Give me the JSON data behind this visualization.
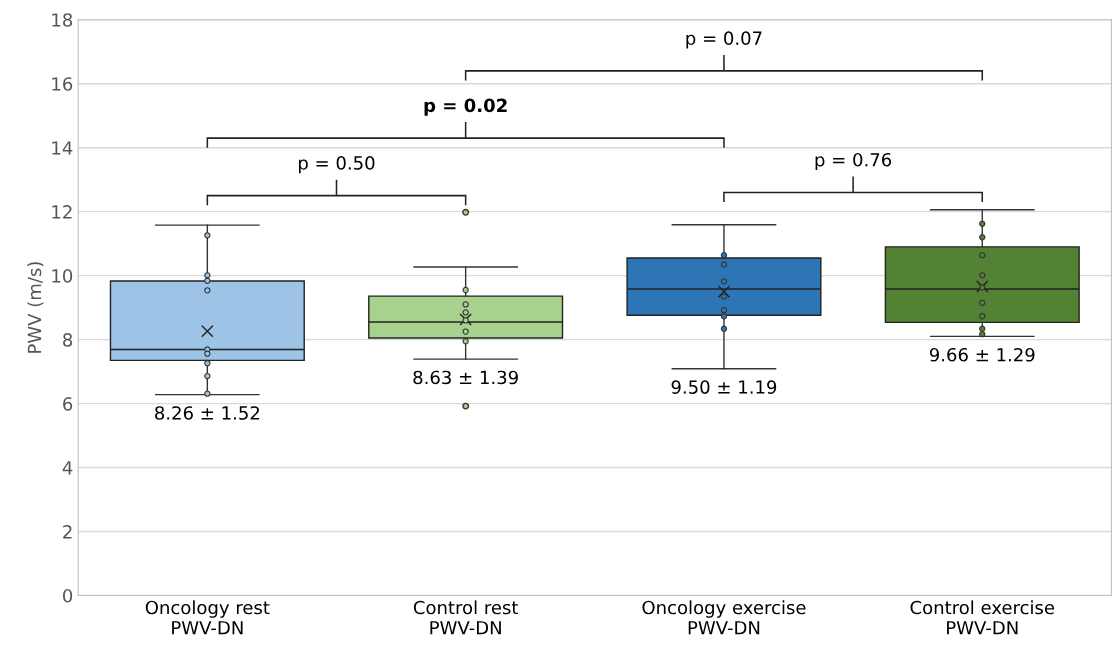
{
  "chart_data": {
    "type": "box",
    "ylabel": "PWV (m/s)",
    "categories": [
      "Oncology rest\nPWV-DN",
      "Control rest\nPWV-DN",
      "Oncology exercise\nPWV-DN",
      "Control exercise\nPWV-DN"
    ],
    "colors": [
      "#9dc3e6",
      "#a9d18e",
      "#2e75b6",
      "#548235"
    ],
    "boxes": [
      {
        "low": 6.28,
        "q1": 7.35,
        "median": 7.69,
        "q3": 9.83,
        "high": 11.58,
        "mean": 8.26
      },
      {
        "low": 7.39,
        "q1": 8.05,
        "median": 8.55,
        "q3": 9.36,
        "high": 10.27,
        "mean": 8.63,
        "outliers": [
          11.98,
          5.92
        ]
      },
      {
        "low": 7.09,
        "q1": 8.76,
        "median": 9.58,
        "q3": 10.55,
        "high": 11.59,
        "mean": 9.5
      },
      {
        "low": 8.1,
        "q1": 8.54,
        "median": 9.58,
        "q3": 10.9,
        "high": 12.06,
        "mean": 9.66
      }
    ],
    "series": [
      {
        "type": "scatter",
        "color": "#9dc3e6",
        "x": [
          "Oncology rest\nPWV-DN",
          "Oncology rest\nPWV-DN",
          "Oncology rest\nPWV-DN",
          "Oncology rest\nPWV-DN",
          "Oncology rest\nPWV-DN",
          "Oncology rest\nPWV-DN",
          "Oncology rest\nPWV-DN",
          "Oncology rest\nPWV-DN",
          "Oncology rest\nPWV-DN"
        ],
        "values": [
          11.26,
          10.01,
          9.84,
          9.54,
          7.69,
          7.56,
          7.26,
          6.86,
          6.31
        ]
      },
      {
        "type": "scatter",
        "color": "#a9d18e",
        "x": [
          "Control rest\nPWV-DN",
          "Control rest\nPWV-DN",
          "Control rest\nPWV-DN",
          "Control rest\nPWV-DN",
          "Control rest\nPWV-DN",
          "Control rest\nPWV-DN"
        ],
        "values": [
          9.55,
          9.1,
          8.85,
          8.6,
          8.25,
          7.95
        ]
      },
      {
        "type": "scatter",
        "color": "#2e75b6",
        "x": [
          "Oncology exercise\nPWV-DN",
          "Oncology exercise\nPWV-DN",
          "Oncology exercise\nPWV-DN",
          "Oncology exercise\nPWV-DN",
          "Oncology exercise\nPWV-DN",
          "Oncology exercise\nPWV-DN",
          "Oncology exercise\nPWV-DN"
        ],
        "values": [
          10.64,
          10.35,
          9.82,
          9.35,
          8.92,
          8.73,
          8.34
        ]
      },
      {
        "type": "scatter",
        "color": "#548235",
        "x": [
          "Control exercise\nPWV-DN",
          "Control exercise\nPWV-DN",
          "Control exercise\nPWV-DN",
          "Control exercise\nPWV-DN",
          "Control exercise\nPWV-DN",
          "Control exercise\nPWV-DN",
          "Control exercise\nPWV-DN",
          "Control exercise\nPWV-DN",
          "Control exercise\nPWV-DN"
        ],
        "values": [
          11.62,
          11.2,
          10.64,
          10.01,
          9.63,
          9.15,
          8.73,
          8.34,
          8.17
        ]
      }
    ],
    "ylim": [
      0,
      18
    ],
    "yticks": [
      0,
      2,
      4,
      6,
      8,
      10,
      12,
      14,
      16,
      18
    ],
    "grid": "y",
    "marker": "circle",
    "annotations": [
      "8.26 ± 1.52",
      "8.63 ± 1.39",
      "9.50 ± 1.19",
      "9.66 ± 1.29",
      "p = 0.50",
      "p = 0.02",
      "p = 0.76",
      "p = 0.07"
    ]
  }
}
